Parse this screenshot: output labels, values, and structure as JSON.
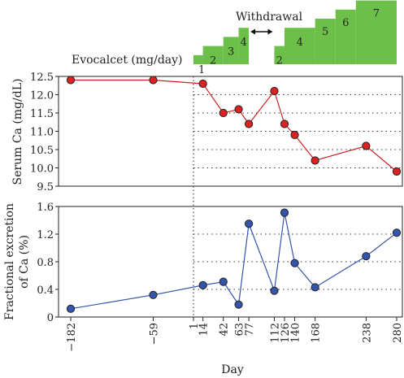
{
  "chart_data": [
    {
      "type": "line",
      "panel": "top",
      "ylabel": "Serum Ca (mg/dL)",
      "ylim": [
        9.5,
        12.5
      ],
      "yticks": [
        9.5,
        10.0,
        10.5,
        11.0,
        11.5,
        12.0,
        12.5
      ],
      "ytick_labels": [
        "9.5",
        "10.0",
        "10.5",
        "11.0",
        "11.5",
        "12.0",
        "12.5"
      ],
      "grid": "horizontal dotted",
      "series": [
        {
          "color": "#cc2222",
          "marker_color": "#dd2222",
          "x": [
            -182,
            -59,
            14,
            42,
            63,
            77,
            112,
            126,
            140,
            168,
            238,
            280
          ],
          "y": [
            12.4,
            12.4,
            12.3,
            11.5,
            11.6,
            11.2,
            12.1,
            11.2,
            10.9,
            10.2,
            10.6,
            9.9
          ]
        }
      ]
    },
    {
      "type": "line",
      "panel": "bottom",
      "ylabel": "Fractional excretion of Ca (%)",
      "ylim": [
        0,
        1.6
      ],
      "yticks": [
        0,
        0.4,
        0.8,
        1.2,
        1.6
      ],
      "ytick_labels": [
        "0",
        "0.4",
        "0.8",
        "1.2",
        "1.6"
      ],
      "grid": "horizontal dotted",
      "series": [
        {
          "color": "#3355aa",
          "marker_color": "#3355aa",
          "x": [
            -182,
            -59,
            14,
            42,
            63,
            77,
            112,
            126,
            140,
            168,
            238,
            280
          ],
          "y": [
            0.12,
            0.32,
            0.46,
            0.51,
            0.18,
            1.35,
            0.38,
            1.51,
            0.78,
            0.43,
            0.88,
            1.22
          ]
        }
      ]
    }
  ],
  "x_axis": {
    "xlabel": "Day",
    "ticks": [
      -182,
      -59,
      1,
      14,
      42,
      63,
      77,
      112,
      126,
      140,
      168,
      238,
      280
    ],
    "tick_labels": [
      "−182",
      "−59",
      "1",
      "14",
      "42",
      "63",
      "77",
      "112",
      "126",
      "140",
      "168",
      "238",
      "280"
    ],
    "scale": "piecewise: compressed before day 1"
  },
  "dosing": {
    "label": "Evocalcet (mg/day)",
    "withdrawal_label": "Withdrawal",
    "color": "#6cc04a",
    "start_day": 1,
    "reference_line_day": 1,
    "first_phase": [
      {
        "label": "1",
        "start": 1,
        "end": 14,
        "level": 1
      },
      {
        "label": "2",
        "start": 14,
        "end": 42,
        "level": 2
      },
      {
        "label": "3",
        "start": 42,
        "end": 63,
        "level": 3
      },
      {
        "label": "4",
        "start": 63,
        "end": 77,
        "level": 4
      }
    ],
    "withdrawal": {
      "start": 77,
      "end": 112
    },
    "second_phase": [
      {
        "label": "2",
        "start": 112,
        "end": 126,
        "level": 2
      },
      {
        "label": "4",
        "start": 126,
        "end": 168,
        "level": 4
      },
      {
        "label": "5",
        "start": 168,
        "end": 196,
        "level": 5
      },
      {
        "label": "6",
        "start": 196,
        "end": 224,
        "level": 6
      },
      {
        "label": "7",
        "start": 224,
        "end": 280,
        "level": 7
      }
    ]
  }
}
